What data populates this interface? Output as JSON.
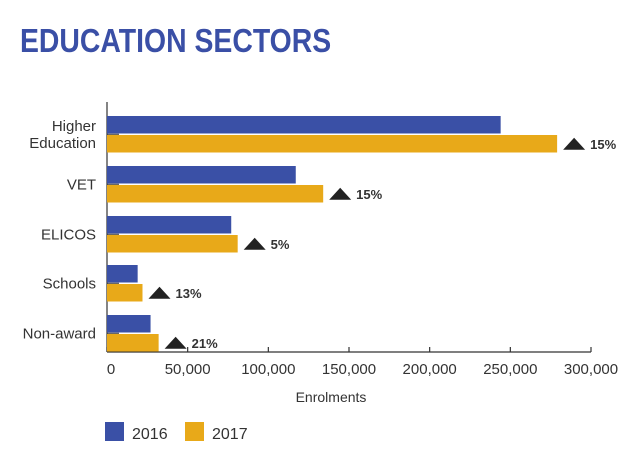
{
  "chart_data": {
    "type": "bar",
    "orientation": "horizontal",
    "title": "EDUCATION SECTORS",
    "xlabel": "Enrolments",
    "ylabel": "",
    "xlim": [
      0,
      300000
    ],
    "xticks": [
      0,
      50000,
      100000,
      150000,
      200000,
      250000,
      300000
    ],
    "xtick_labels": [
      "0",
      "50,000",
      "100,000",
      "150,000",
      "200,000",
      "250,000",
      "300,000"
    ],
    "categories": [
      [
        "Higher",
        "Education"
      ],
      [
        "VET"
      ],
      [
        "ELICOS"
      ],
      [
        "Schools"
      ],
      [
        "Non-award"
      ]
    ],
    "series": [
      {
        "name": "2016",
        "color": "#3a50a6",
        "values": [
          244000,
          117000,
          77000,
          19000,
          27000
        ]
      },
      {
        "name": "2017",
        "color": "#e8a919",
        "values": [
          279000,
          134000,
          81000,
          22000,
          32000
        ]
      }
    ],
    "annotations": [
      "15%",
      "15%",
      "5%",
      "13%",
      "21%"
    ],
    "legend": "bottom-left",
    "grid": false
  }
}
